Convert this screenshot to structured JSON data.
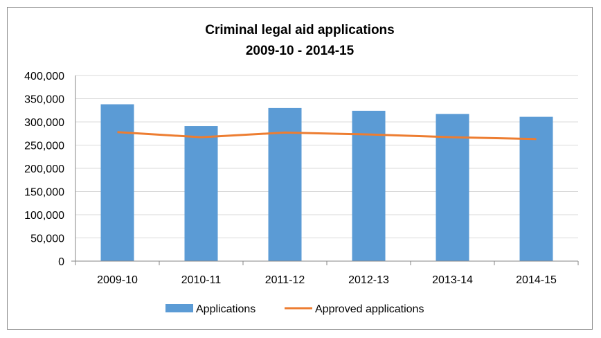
{
  "chart_data": {
    "type": "bar",
    "title": "Criminal legal aid applications",
    "subtitle": "2009-10 - 2014-15",
    "categories": [
      "2009-10",
      "2010-11",
      "2011-12",
      "2012-13",
      "2013-14",
      "2014-15"
    ],
    "series": [
      {
        "name": "Applications",
        "type": "bar",
        "color": "#5b9bd5",
        "values": [
          338000,
          291000,
          330000,
          324000,
          317000,
          311000
        ]
      },
      {
        "name": "Approved applications",
        "type": "line",
        "color": "#ed7d31",
        "values": [
          278000,
          267000,
          277000,
          273000,
          267000,
          263000
        ]
      }
    ],
    "ylim": [
      0,
      400000
    ],
    "y_ticks": [
      "0",
      "50,000",
      "100,000",
      "150,000",
      "200,000",
      "250,000",
      "300,000",
      "350,000",
      "400,000"
    ],
    "grid": true,
    "legend_position": "bottom"
  }
}
